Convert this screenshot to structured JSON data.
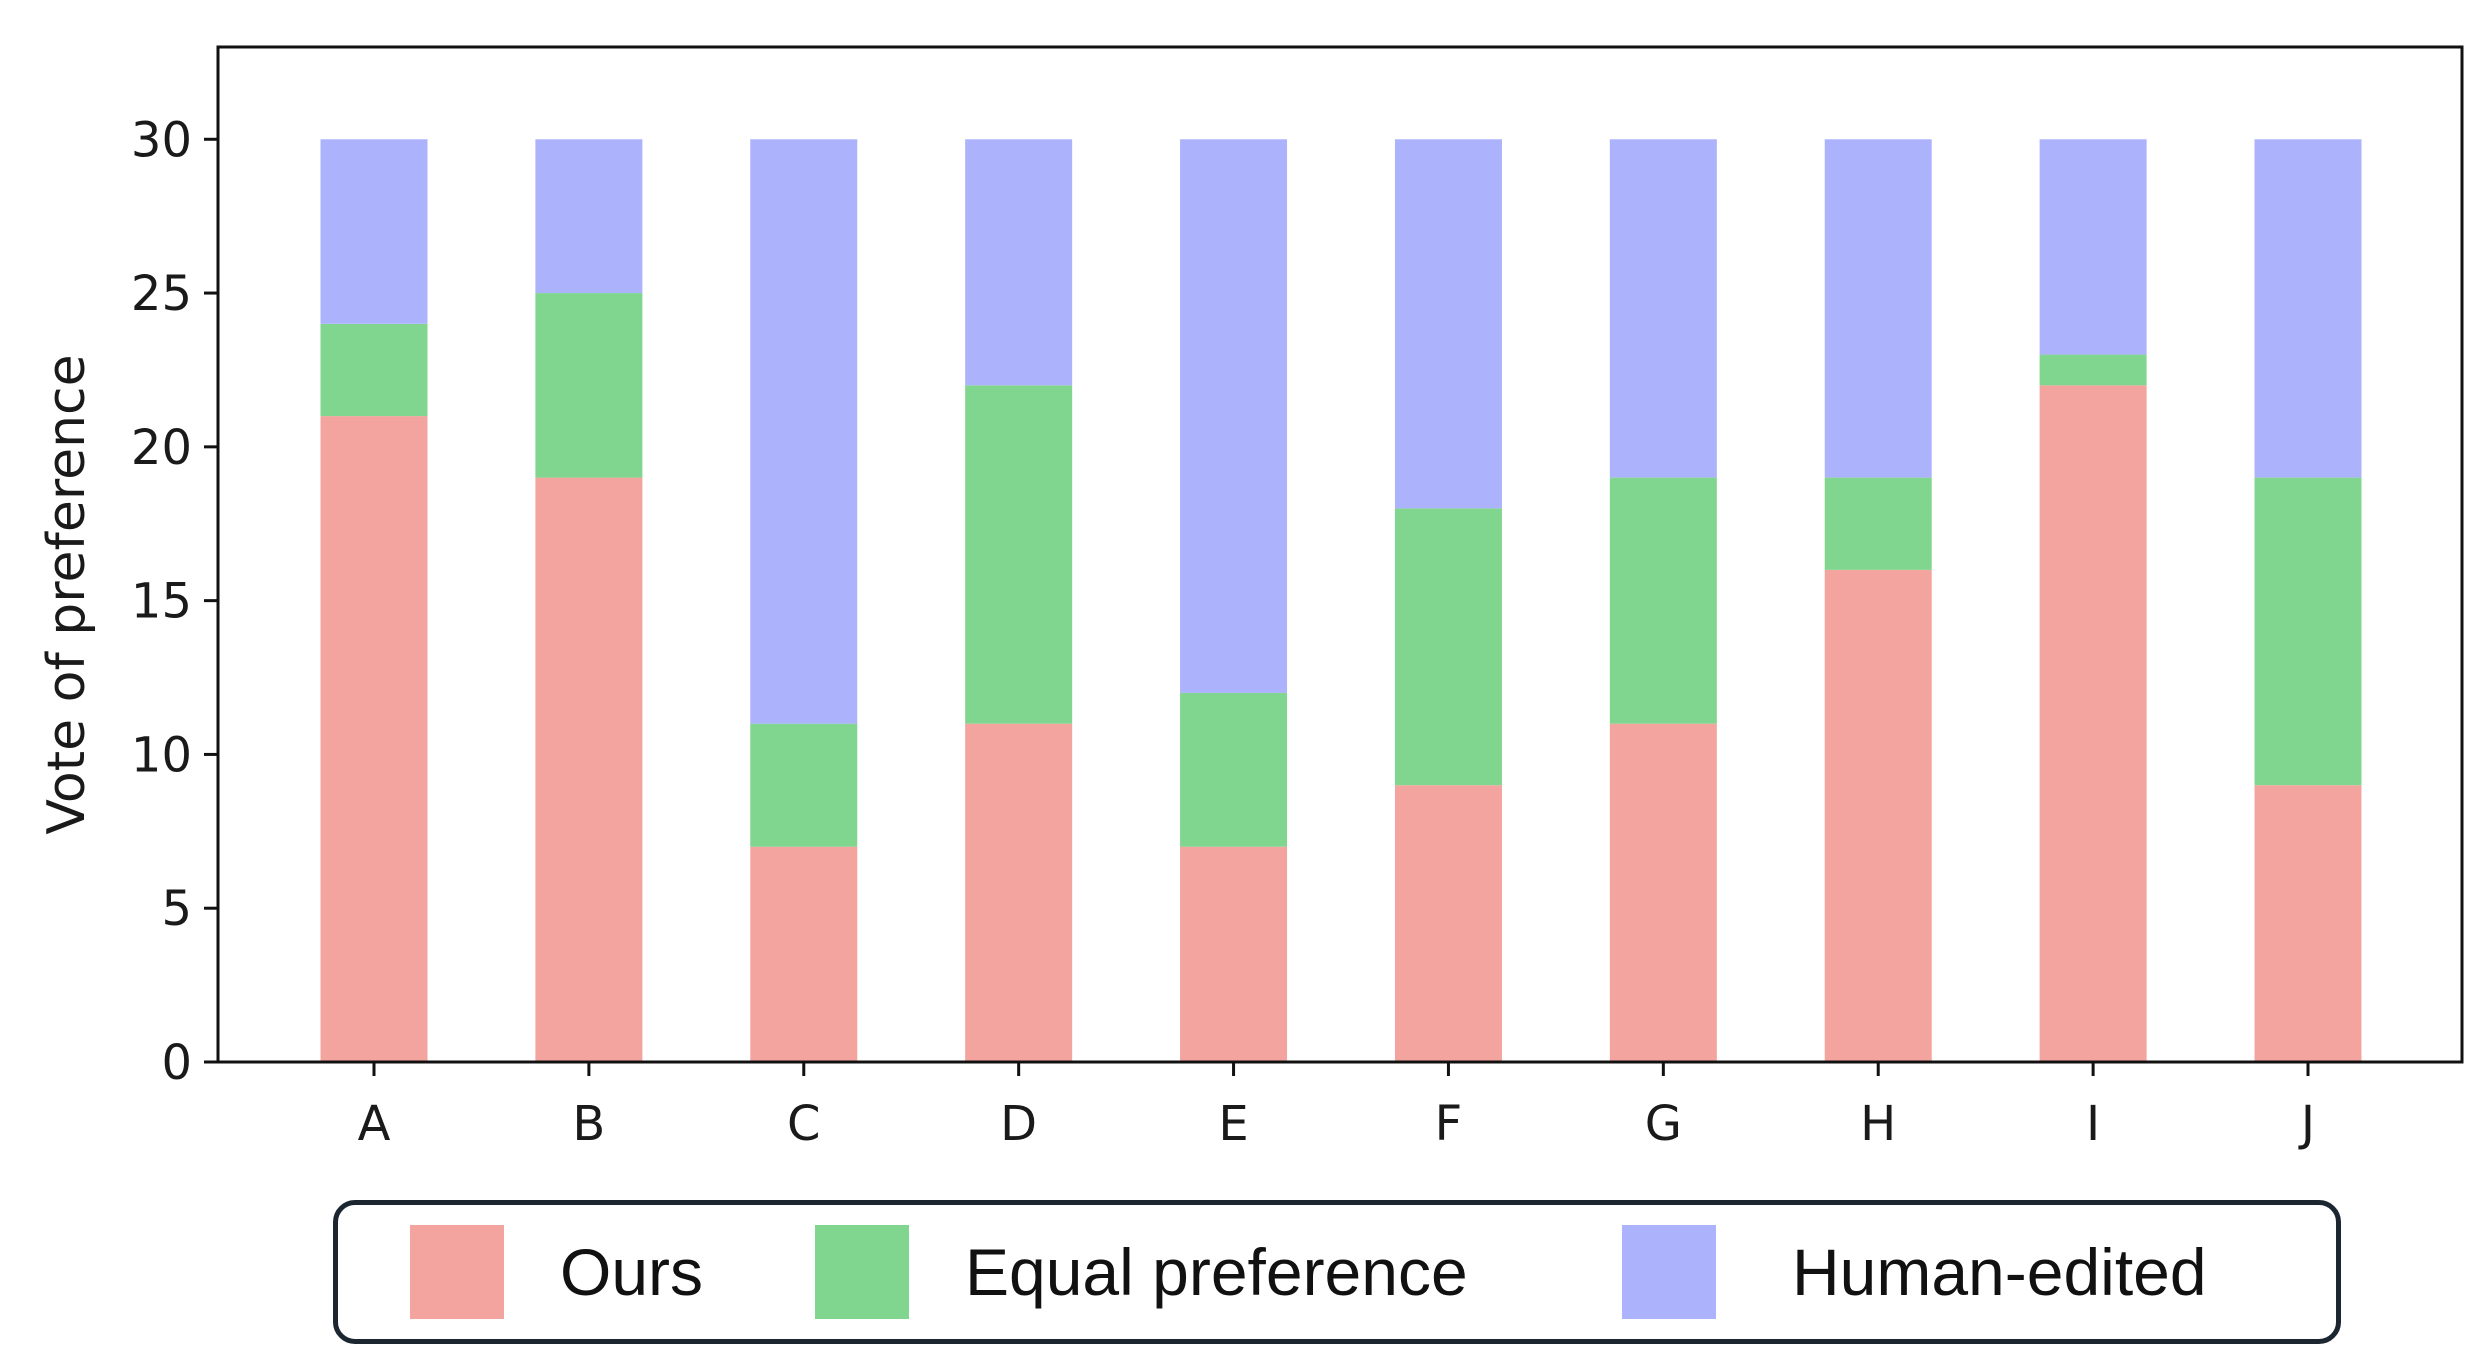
{
  "chart_data": {
    "type": "bar",
    "stacked": true,
    "categories": [
      "A",
      "B",
      "C",
      "D",
      "E",
      "F",
      "G",
      "H",
      "I",
      "J"
    ],
    "series": [
      {
        "name": "Ours",
        "color": "#f4a49f",
        "values": [
          21,
          19,
          7,
          11,
          7,
          9,
          11,
          16,
          22,
          9
        ]
      },
      {
        "name": "Equal preference",
        "color": "#80d68e",
        "values": [
          3,
          6,
          4,
          11,
          5,
          9,
          8,
          3,
          1,
          10
        ]
      },
      {
        "name": "Human-edited",
        "color": "#adb2fd",
        "values": [
          6,
          5,
          19,
          8,
          18,
          12,
          11,
          11,
          7,
          11
        ]
      }
    ],
    "title": "",
    "xlabel": "",
    "ylabel": "Vote of preference",
    "ylim": [
      0,
      33
    ],
    "yticks": [
      0,
      5,
      10,
      15,
      20,
      25,
      30
    ],
    "grid": false,
    "legend_position": "bottom-outside"
  },
  "legend": {
    "items": [
      {
        "label": "Ours",
        "color": "#f4a49f"
      },
      {
        "label": "Equal preference",
        "color": "#80d68e"
      },
      {
        "label": "Human-edited",
        "color": "#adb2fd"
      }
    ]
  }
}
